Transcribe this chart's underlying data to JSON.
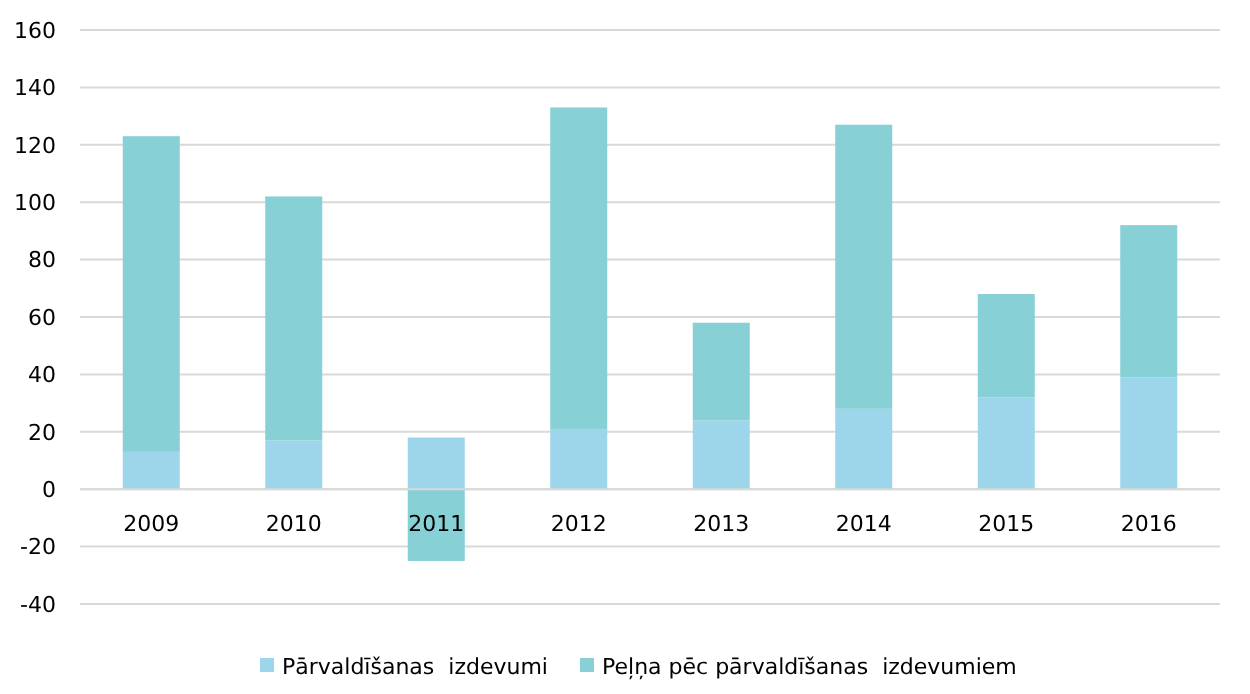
{
  "chart_data": {
    "type": "bar",
    "stacked": true,
    "categories": [
      "2009",
      "2010",
      "2011",
      "2012",
      "2013",
      "2014",
      "2015",
      "2016"
    ],
    "series": [
      {
        "name": "Pārvaldīšanas  izdevumi",
        "color": "#9dd6ea",
        "values": [
          13,
          17,
          18,
          21,
          24,
          28,
          32,
          39
        ]
      },
      {
        "name": "Peļņa pēc pārvaldīšanas  izdevumiem",
        "color": "#87d0d6",
        "values": [
          110,
          85,
          -25,
          112,
          34,
          99,
          36,
          53
        ]
      }
    ],
    "ylim": [
      -40,
      160
    ],
    "yticks": [
      -40,
      -20,
      0,
      20,
      40,
      60,
      80,
      100,
      120,
      140,
      160
    ],
    "grid": "y",
    "legend": "bottom"
  }
}
